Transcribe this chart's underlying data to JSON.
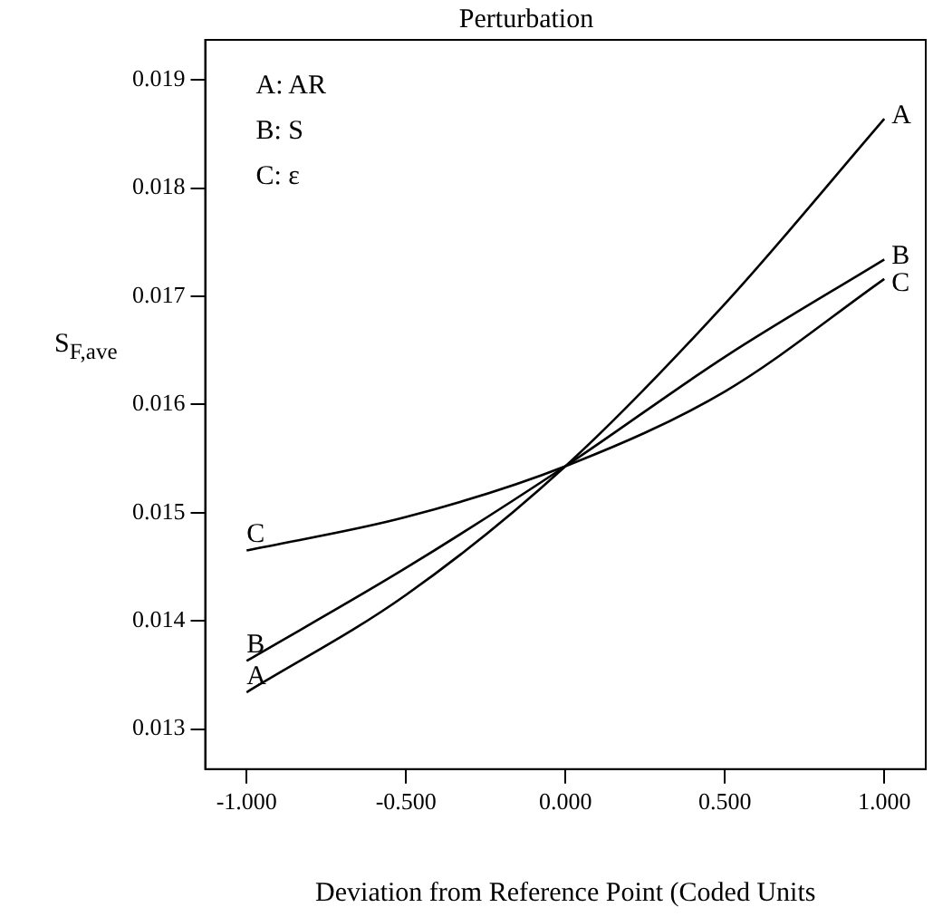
{
  "chart_data": {
    "type": "line",
    "title": "Perturbation",
    "xlabel": "Deviation from Reference Point (Coded Units",
    "ylabel": "S$_{F,ave}$",
    "x": [
      -1,
      -0.5,
      0,
      0.5,
      1
    ],
    "series": [
      {
        "name": "A",
        "color": "#000000",
        "values": [
          0.01334,
          0.01424,
          0.01543,
          0.01693,
          0.01864
        ]
      },
      {
        "name": "B",
        "color": "#000000",
        "values": [
          0.01363,
          0.01449,
          0.01543,
          0.01644,
          0.01734
        ]
      },
      {
        "name": "C",
        "color": "#000000",
        "values": [
          0.01465,
          0.01496,
          0.01543,
          0.01612,
          0.01716
        ]
      }
    ],
    "annotations": [
      "A: AR",
      "B: S",
      "C: ε"
    ],
    "xlim": [
      -1.13,
      1.13
    ],
    "ylim": [
      0.01263,
      0.01937
    ],
    "xticks": [
      {
        "value": -1,
        "label": "-1.000"
      },
      {
        "value": -0.5,
        "label": "-0.500"
      },
      {
        "value": 0,
        "label": "0.000"
      },
      {
        "value": 0.5,
        "label": "0.500"
      },
      {
        "value": 1,
        "label": "1.000"
      }
    ],
    "yticks": [
      0.013,
      0.014,
      0.015,
      0.016,
      0.017,
      0.018,
      0.019
    ],
    "grid": false,
    "legend": false,
    "marker": "none",
    "line_style": "solid"
  }
}
